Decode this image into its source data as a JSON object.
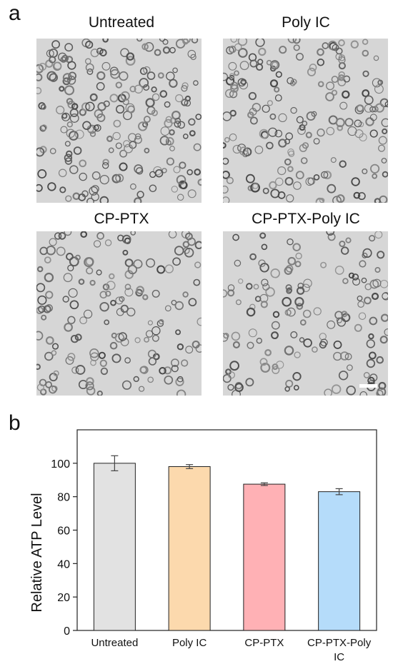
{
  "figure": {
    "panel_a_letter": "a",
    "panel_b_letter": "b",
    "micrographs": [
      {
        "label": "Untreated",
        "density": 1.0
      },
      {
        "label": "Poly IC",
        "density": 0.9
      },
      {
        "label": "CP-PTX",
        "density": 0.75
      },
      {
        "label": "CP-PTX-Poly IC",
        "density": 0.7
      }
    ],
    "scale_bar_present": true
  },
  "chart_data": {
    "type": "bar",
    "categories": [
      "Untreated",
      "Poly IC",
      "CP-PTX",
      "CP-PTX-Poly IC"
    ],
    "category_tick_lines": [
      [
        "Untreated"
      ],
      [
        "Poly IC"
      ],
      [
        "CP-PTX"
      ],
      [
        "CP-PTX-Poly",
        "IC"
      ]
    ],
    "values": [
      100,
      98,
      87.5,
      83
    ],
    "errors": [
      4.5,
      1.2,
      0.8,
      1.8
    ],
    "colors": [
      "#e2e2e2",
      "#fcd9ad",
      "#ffb1b5",
      "#b5dcfa"
    ],
    "ylabel": "Relative ATP Level",
    "xlabel": "",
    "ylim": [
      0,
      120
    ],
    "yticks": [
      0,
      20,
      40,
      60,
      80,
      100
    ],
    "grid": false
  }
}
